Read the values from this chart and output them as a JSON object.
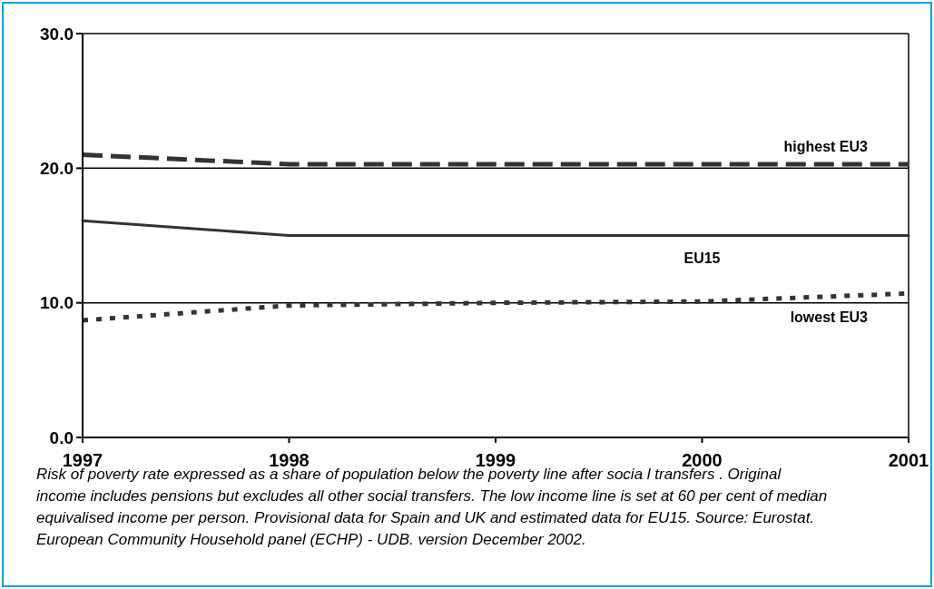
{
  "chart_data": {
    "type": "line",
    "categories": [
      "1997",
      "1998",
      "1999",
      "2000",
      "2001"
    ],
    "series": [
      {
        "name": "highest EU3",
        "color": "#333333",
        "line_style": "dashed",
        "values": [
          21.0,
          20.3,
          20.3,
          20.3,
          20.3
        ]
      },
      {
        "name": "EU15",
        "color": "#333333",
        "line_style": "solid",
        "values": [
          16.1,
          15.0,
          15.0,
          15.0,
          15.0
        ]
      },
      {
        "name": "lowest EU3",
        "color": "#333333",
        "line_style": "dotted",
        "values": [
          8.7,
          9.8,
          10.0,
          10.1,
          10.7
        ]
      }
    ],
    "ylim": [
      0,
      30
    ],
    "yticks": [
      {
        "value": 0,
        "label": "0.0"
      },
      {
        "value": 10,
        "label": "10.0"
      },
      {
        "value": 20,
        "label": "20.0"
      },
      {
        "value": 30,
        "label": "30.0"
      }
    ],
    "grid": "y",
    "annotations": [
      "Risk of poverty rate expressed as a share of population below the poverty line after socia l transfers . Original income includes pensions but excludes all other social transfers. The low income line is set at 60 per cent of median equivalised income per person.  Provisional data for Spain and UK and estimated data for EU15. Source: Eurostat. European Community Household panel (ECHP) - UDB. version December 2002."
    ]
  }
}
